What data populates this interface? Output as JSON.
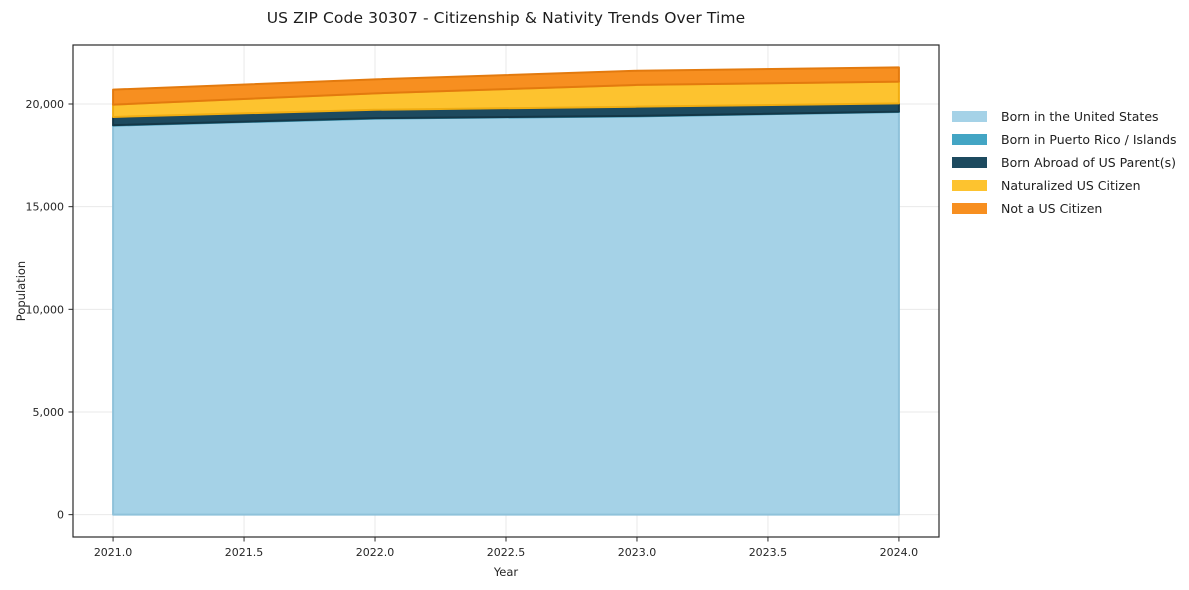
{
  "chart_data": {
    "type": "area",
    "stacked": true,
    "title": "US ZIP Code 30307 - Citizenship & Nativity Trends Over Time",
    "xlabel": "Year",
    "ylabel": "Population",
    "x": [
      2021,
      2022,
      2023,
      2024
    ],
    "series": [
      {
        "name": "Born in the United States",
        "color": "#a5d2e7",
        "edge_color": "#8fc2da",
        "values": [
          18950,
          19290,
          19400,
          19610
        ]
      },
      {
        "name": "Born in Puerto Rico / Islands",
        "color": "#43a5c4",
        "edge_color": "#3a93af",
        "values": [
          20,
          20,
          20,
          20
        ]
      },
      {
        "name": "Born Abroad of US Parent(s)",
        "color": "#1d4a5f",
        "edge_color": "#143747",
        "values": [
          400,
          410,
          450,
          400
        ]
      },
      {
        "name": "Naturalized US Citizen",
        "color": "#fdc32f",
        "edge_color": "#f0ad12",
        "values": [
          600,
          800,
          1060,
          1060
        ]
      },
      {
        "name": "Not a US Citizen",
        "color": "#f78f20",
        "edge_color": "#e37a0e",
        "values": [
          730,
          680,
          690,
          695
        ]
      }
    ],
    "x_ticks": {
      "values": [
        2021,
        2021.5,
        2022,
        2022.5,
        2023,
        2023.5,
        2024
      ],
      "labels": [
        "2021.0",
        "2021.5",
        "2022.0",
        "2022.5",
        "2023.0",
        "2023.5",
        "2024.0"
      ]
    },
    "y_ticks": {
      "values": [
        0,
        5000,
        10000,
        15000,
        20000
      ],
      "labels": [
        "0",
        "5,000",
        "10,000",
        "15,000",
        "20,000"
      ]
    },
    "xlim": [
      2020.847,
      2024.153
    ],
    "ylim": [
      -1089,
      22874
    ],
    "grid": true,
    "grid_color": "#e9e9e9",
    "spine_color": "#2a2a2a",
    "tick_label_color": "#262626",
    "background_color": "#ffffff",
    "legend_position": "right"
  }
}
